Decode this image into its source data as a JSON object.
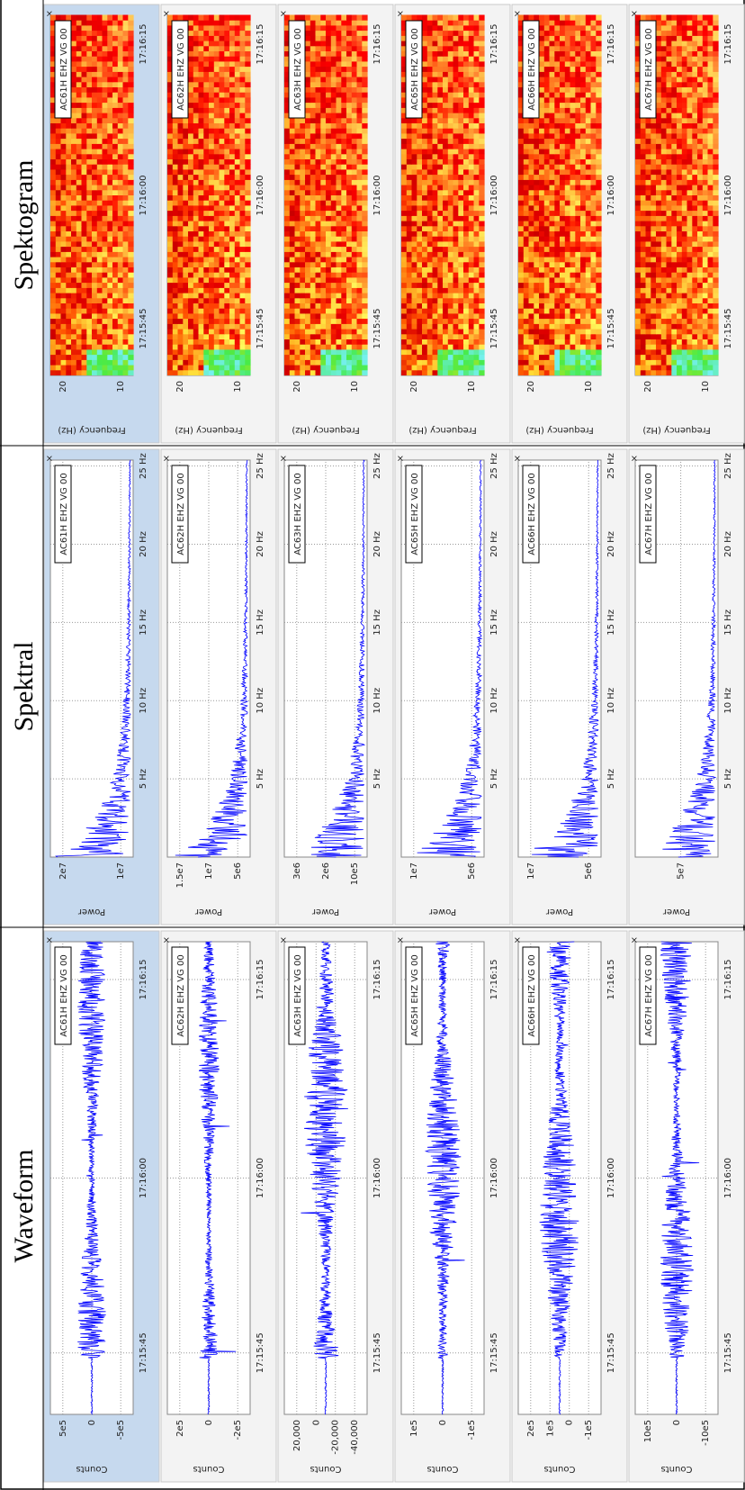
{
  "close_label": "×",
  "columns": [
    {
      "title": "Waveform",
      "y_label": "Counts",
      "x_ticks": [
        "17:15:45",
        "17:16:00",
        "17:16:15"
      ],
      "panels": [
        {
          "station": "AC61H EHZ VG 00",
          "y_ticks": [
            "5e5",
            "0",
            "-5e5"
          ]
        },
        {
          "station": "AC62H EHZ VG 00",
          "y_ticks": [
            "2e5",
            "0",
            "-2e5"
          ]
        },
        {
          "station": "AC63H EHZ VG 00",
          "y_ticks": [
            "20,000",
            "0",
            "-20,000",
            "-40,000"
          ]
        },
        {
          "station": "AC65H EHZ VG 00",
          "y_ticks": [
            "1e5",
            "0",
            "-1e5"
          ]
        },
        {
          "station": "AC66H EHZ VG 00",
          "y_ticks": [
            "2e5",
            "1e5",
            "0",
            "-1e5"
          ]
        },
        {
          "station": "AC67H EHZ VG 00",
          "y_ticks": [
            "10e5",
            "0",
            "-10e5"
          ]
        }
      ]
    },
    {
      "title": "Spektral",
      "y_label": "Power",
      "x_ticks": [
        "5 Hz",
        "10 Hz",
        "15 Hz",
        "20 Hz",
        "25 Hz"
      ],
      "panels": [
        {
          "station": "AC61H EHZ VG 00",
          "y_ticks": [
            "2e7",
            "1e7"
          ]
        },
        {
          "station": "AC62H EHZ VG 00",
          "y_ticks": [
            "1.5e7",
            "1e7",
            "5e6"
          ]
        },
        {
          "station": "AC63H EHZ VG 00",
          "y_ticks": [
            "3e6",
            "2e6",
            "10e5"
          ]
        },
        {
          "station": "AC65H EHZ VG 00",
          "y_ticks": [
            "1e7",
            "5e6"
          ]
        },
        {
          "station": "AC66H EHZ VG 00",
          "y_ticks": [
            "1e7",
            "5e6"
          ]
        },
        {
          "station": "AC67H EHZ VG 00",
          "y_ticks": [
            "5e7"
          ]
        }
      ]
    },
    {
      "title": "Spektogram",
      "y_label": "Frequency (Hz)",
      "x_ticks": [
        "17:15:45",
        "17:16:00",
        "17:16:15"
      ],
      "panels": [
        {
          "station": "AC61H EHZ VG 00",
          "y_ticks": [
            "20",
            "10"
          ]
        },
        {
          "station": "AC62H EHZ VG 00",
          "y_ticks": [
            "20",
            "10"
          ]
        },
        {
          "station": "AC63H EHZ VG 00",
          "y_ticks": [
            "20",
            "10"
          ]
        },
        {
          "station": "AC65H EHZ VG 00",
          "y_ticks": [
            "20",
            "10"
          ]
        },
        {
          "station": "AC66H EHZ VG 00",
          "y_ticks": [
            "20",
            "10"
          ]
        },
        {
          "station": "AC67H EHZ VG 00",
          "y_ticks": [
            "20",
            "10"
          ]
        }
      ]
    }
  ]
}
